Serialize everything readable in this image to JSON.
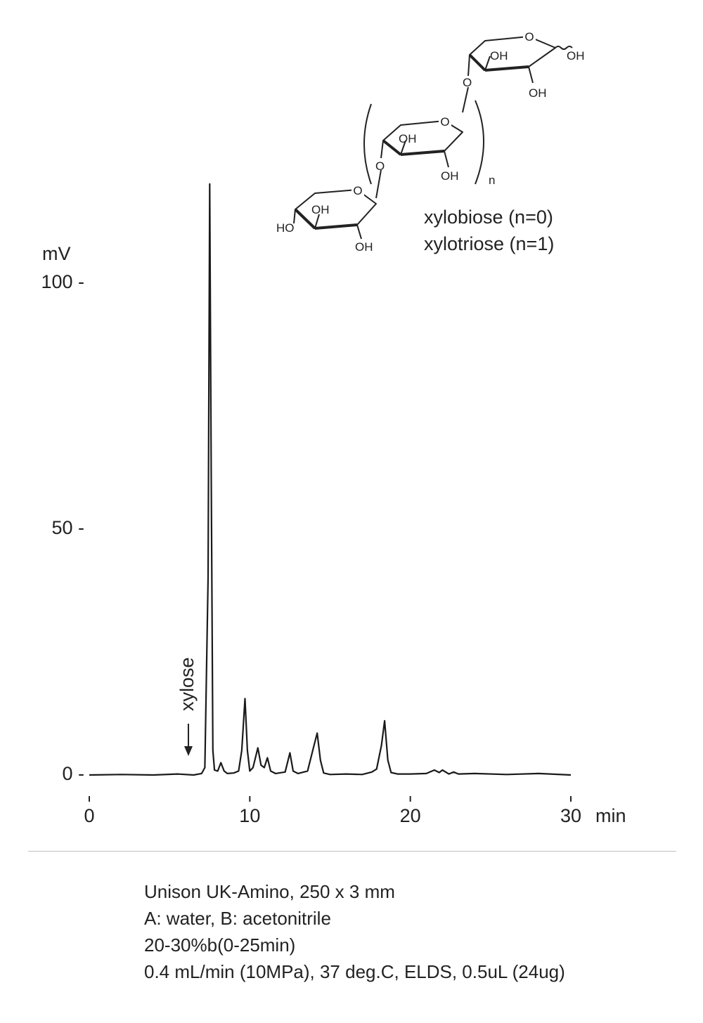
{
  "chart_data": {
    "type": "line",
    "title": "",
    "xlabel": "",
    "ylabel": "mV",
    "xlim": [
      0,
      30
    ],
    "ylim": [
      0,
      120
    ],
    "x_unit": "min",
    "x_ticks": [
      0,
      10,
      20,
      30
    ],
    "x_tick_labels": [
      "0",
      "10",
      "20",
      "30"
    ],
    "y_ticks": [
      0,
      50,
      100
    ],
    "y_tick_labels": [
      "0 -",
      "50 -",
      "100 -"
    ],
    "grid": false,
    "series": [
      {
        "name": "",
        "x": [
          0,
          2.0,
          4.0,
          5.5,
          6.5,
          7.0,
          7.2,
          7.4,
          7.5,
          7.6,
          7.7,
          7.8,
          8.0,
          8.2,
          8.4,
          8.6,
          9.0,
          9.3,
          9.5,
          9.7,
          9.85,
          10.0,
          10.2,
          10.5,
          10.7,
          10.9,
          11.1,
          11.3,
          11.6,
          12.2,
          12.5,
          12.7,
          13.0,
          13.6,
          14.0,
          14.2,
          14.4,
          14.6,
          15.0,
          16.0,
          17.0,
          17.6,
          17.9,
          18.2,
          18.4,
          18.6,
          18.8,
          19.2,
          20.0,
          21.0,
          21.5,
          21.8,
          22.0,
          22.4,
          22.7,
          23.0,
          24.0,
          26.0,
          28.0,
          30.0
        ],
        "y": [
          0,
          0.1,
          0,
          0.2,
          0,
          0.3,
          1.5,
          40,
          120,
          60,
          5,
          1,
          0.8,
          2.5,
          0.8,
          0.3,
          0.4,
          0.8,
          5,
          15.5,
          5,
          0.8,
          1.5,
          5.5,
          2,
          1.5,
          3.5,
          0.8,
          0.3,
          0.6,
          4.5,
          0.8,
          0.3,
          0.8,
          6,
          8.5,
          3,
          0.4,
          0.1,
          0.2,
          0.1,
          0.6,
          1.2,
          6,
          11,
          3,
          0.5,
          0.2,
          0.2,
          0.3,
          1,
          0.5,
          1,
          0.2,
          0.6,
          0.2,
          0.3,
          0.1,
          0.3,
          0
        ]
      }
    ],
    "annotations": [
      {
        "text": "xylose",
        "x": 6.3,
        "type": "arrow-down"
      }
    ]
  },
  "structure": {
    "ring_labels": [
      "OH",
      "OH",
      "OH",
      "OH",
      "OH",
      "OH",
      "HO"
    ],
    "oxygen_labels": [
      "O",
      "O",
      "O",
      "O",
      "O"
    ],
    "repeat_label": "n",
    "compounds": [
      "xylobiose (n=0)",
      "xylotriose (n=1)"
    ]
  },
  "conditions": [
    "Unison UK-Amino, 250 x 3 mm",
    "A: water, B: acetonitrile",
    "20-30%b(0-25min)",
    "0.4 mL/min (10MPa), 37 deg.C, ELDS, 0.5uL (24ug)"
  ]
}
